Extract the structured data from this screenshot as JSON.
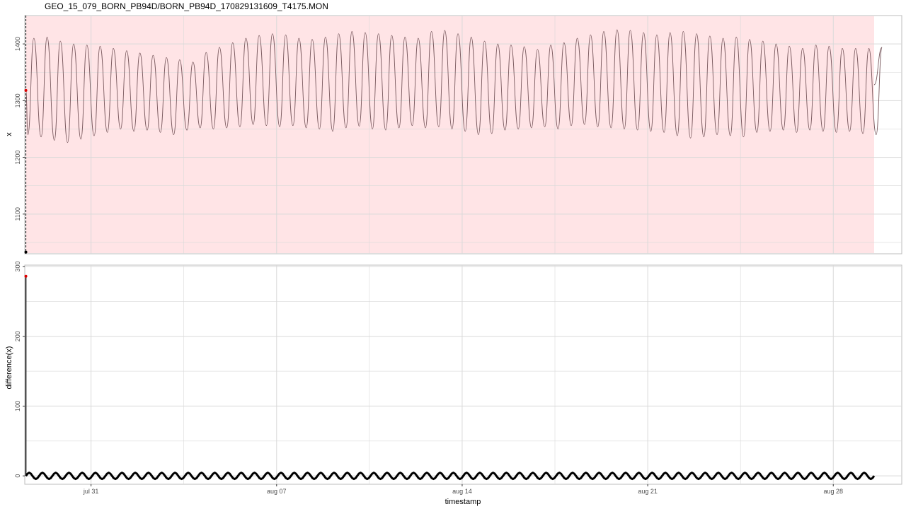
{
  "title": "GEO_15_079_BORN_PB94D/BORN_PB94D_170829131609_T4175.MON",
  "colors": {
    "panel_fill": "#ffe4e6",
    "series_line": "#7a5a5f",
    "grid": "#d9d9d9",
    "highlight_point": "#e00000",
    "diff_line": "#000000"
  },
  "chart_data": [
    {
      "type": "line",
      "panel": "top",
      "title": "",
      "xlabel": "",
      "ylabel": "x",
      "xlim": [
        "2017-07-28T12:00",
        "2017-08-30T14:00"
      ],
      "ylim": [
        1030,
        1450
      ],
      "yticks": [
        1100,
        1200,
        1300,
        1400
      ],
      "ytick_labels": [
        "1100",
        "1200",
        "1300",
        "1400"
      ],
      "shaded_region": {
        "from": "2017-07-28T13:00",
        "to": "2017-08-29T13:00",
        "color": "#ffe4e6"
      },
      "vline": {
        "x": "2017-07-28T13:00",
        "style": "dashed"
      },
      "highlight_points": [
        {
          "x": "2017-07-28T13:00",
          "y": 1318,
          "color": "red"
        },
        {
          "x": "2017-07-28T13:00",
          "y": 1033,
          "color": "black"
        }
      ],
      "series": [
        {
          "x_start": "2017-07-28T13:00",
          "step_hours": 12,
          "y_max": [
            1410,
            1412,
            1405,
            1400,
            1398,
            1396,
            1392,
            1388,
            1384,
            1380,
            1376,
            1372,
            1368,
            1385,
            1394,
            1402,
            1410,
            1415,
            1418,
            1416,
            1410,
            1408,
            1412,
            1418,
            1422,
            1420,
            1418,
            1415,
            1412,
            1410,
            1422,
            1424,
            1418,
            1412,
            1405,
            1400,
            1398,
            1395,
            1390,
            1398,
            1402,
            1410,
            1416,
            1422,
            1425,
            1424,
            1420,
            1416,
            1420,
            1422,
            1418,
            1414,
            1410,
            1412,
            1408,
            1405,
            1400,
            1396,
            1392,
            1398,
            1396,
            1392,
            1392,
            1392,
            1394
          ],
          "y_min": [
            1240,
            1236,
            1230,
            1226,
            1232,
            1238,
            1244,
            1250,
            1246,
            1248,
            1244,
            1240,
            1248,
            1252,
            1250,
            1252,
            1254,
            1258,
            1256,
            1254,
            1256,
            1252,
            1250,
            1246,
            1252,
            1255,
            1250,
            1248,
            1252,
            1256,
            1252,
            1254,
            1250,
            1246,
            1240,
            1242,
            1248,
            1250,
            1252,
            1254,
            1250,
            1256,
            1258,
            1254,
            1252,
            1250,
            1248,
            1246,
            1244,
            1238,
            1234,
            1236,
            1240,
            1238,
            1236,
            1244,
            1246,
            1248,
            1244,
            1248,
            1246,
            1244,
            1246,
            1242,
            1240
          ]
        }
      ]
    },
    {
      "type": "line",
      "panel": "bottom",
      "title": "",
      "xlabel": "timestamp",
      "ylabel": "difference(x)",
      "xlim": [
        "2017-07-28T12:00",
        "2017-08-30T14:00"
      ],
      "ylim": [
        -12,
        302
      ],
      "yticks": [
        0,
        100,
        200,
        300
      ],
      "ytick_labels": [
        "0",
        "100",
        "200",
        "300"
      ],
      "xticks": [
        "2017-07-31",
        "2017-08-07",
        "2017-08-14",
        "2017-08-21",
        "2017-08-28"
      ],
      "xtick_labels": [
        "jul 31",
        "aug 07",
        "aug 14",
        "aug 21",
        "aug 28"
      ],
      "highlight_points": [
        {
          "x": "2017-07-28T13:00",
          "y": 286,
          "color": "red"
        }
      ],
      "series": [
        {
          "spike": {
            "x": "2017-07-28T13:00",
            "y": 286
          },
          "oscillation": {
            "x_start": "2017-07-28T13:00",
            "x_end": "2017-08-29T13:00",
            "step_hours": 12,
            "amplitude": 4.5,
            "offset": 0
          }
        }
      ]
    }
  ]
}
